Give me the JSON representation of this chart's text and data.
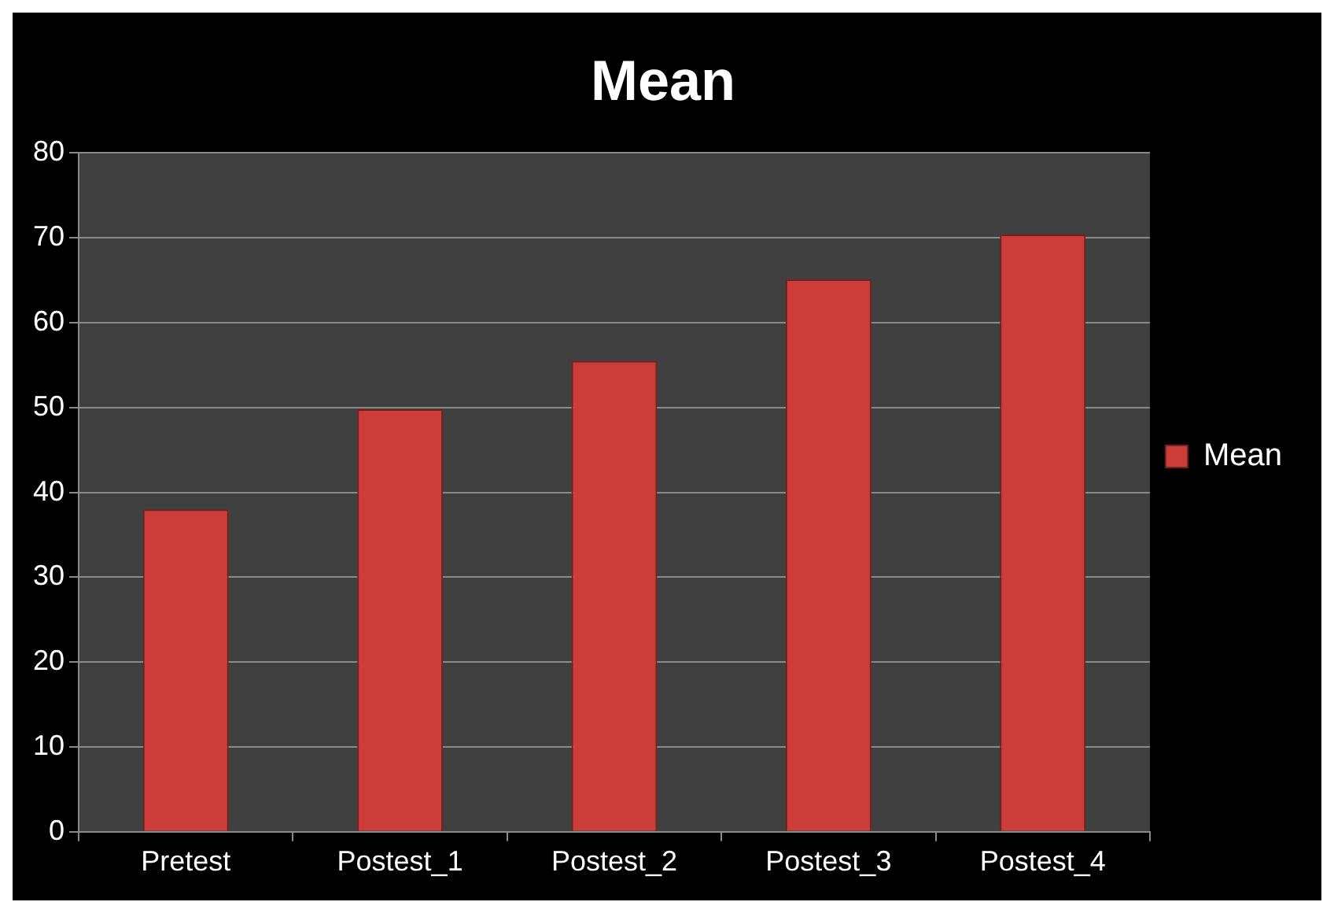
{
  "chart_data": {
    "type": "bar",
    "title": "Mean",
    "categories": [
      "Pretest",
      "Postest_1",
      "Postest_2",
      "Postest_3",
      "Postest_4"
    ],
    "series": [
      {
        "name": "Mean",
        "color": "#cc3d3a",
        "values": [
          38,
          49.8,
          55.5,
          65.1,
          70.4
        ]
      }
    ],
    "ylim": [
      0,
      80
    ],
    "yticks": [
      0,
      10,
      20,
      30,
      40,
      50,
      60,
      70,
      80
    ],
    "grid": "y",
    "legend": "right"
  }
}
